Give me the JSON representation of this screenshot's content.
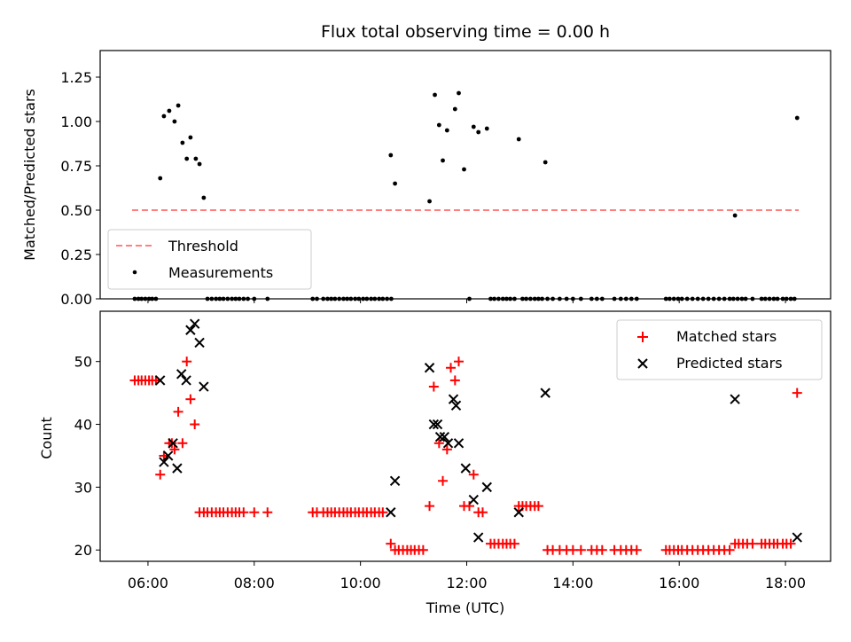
{
  "chart_data": [
    {
      "panel": "top",
      "type": "scatter",
      "title": "Flux total observing time = 0.00 h",
      "ylabel": "Matched/Predicted stars",
      "xlabel": "",
      "xlim_hours": [
        5.1,
        18.85
      ],
      "ylim": [
        0,
        1.4
      ],
      "yticks": [
        0.0,
        0.25,
        0.5,
        0.75,
        1.0,
        1.25
      ],
      "ytick_labels": [
        "0.00",
        "0.25",
        "0.50",
        "0.75",
        "1.00",
        "1.25"
      ],
      "legend_position": "lower-left",
      "colors": {
        "threshold": "#ff7f7f",
        "measurements": "#000000"
      },
      "threshold": {
        "name": "Threshold",
        "value": 0.5,
        "x_range_hours": [
          5.7,
          18.25
        ]
      },
      "measurements": {
        "name": "Measurements",
        "x_hours": [
          6.23,
          6.3,
          6.4,
          6.5,
          6.57,
          6.65,
          6.73,
          6.8,
          6.9,
          6.97,
          7.05,
          10.57,
          10.65,
          11.3,
          11.4,
          11.48,
          11.55,
          11.63,
          11.78,
          11.85,
          11.95,
          12.13,
          12.22,
          12.38,
          12.98,
          13.48,
          17.05,
          18.22
        ],
        "y": [
          0.68,
          1.03,
          1.06,
          1.0,
          1.09,
          0.88,
          0.79,
          0.91,
          0.79,
          0.76,
          0.57,
          0.81,
          0.65,
          0.55,
          1.15,
          0.98,
          0.78,
          0.95,
          1.07,
          1.16,
          0.73,
          0.97,
          0.94,
          0.96,
          0.9,
          0.77,
          0.47,
          1.02
        ],
        "zero_x_hours": [
          5.75,
          5.82,
          5.88,
          5.95,
          6.02,
          6.08,
          6.15,
          7.12,
          7.2,
          7.28,
          7.35,
          7.42,
          7.5,
          7.58,
          7.65,
          7.72,
          7.8,
          7.88,
          8.0,
          8.25,
          9.1,
          9.18,
          9.3,
          9.38,
          9.45,
          9.52,
          9.6,
          9.68,
          9.75,
          9.82,
          9.9,
          9.97,
          10.05,
          10.12,
          10.2,
          10.27,
          10.35,
          10.42,
          10.5,
          10.58,
          12.05,
          12.45,
          12.52,
          12.6,
          12.68,
          12.75,
          12.82,
          12.9,
          13.05,
          13.12,
          13.2,
          13.28,
          13.35,
          13.42,
          13.52,
          13.62,
          13.75,
          13.88,
          14.0,
          14.15,
          14.35,
          14.45,
          14.55,
          14.78,
          14.9,
          15.0,
          15.1,
          15.2,
          15.75,
          15.82,
          15.9,
          15.98,
          16.05,
          16.15,
          16.25,
          16.35,
          16.45,
          16.55,
          16.65,
          16.75,
          16.85,
          16.95,
          17.02,
          17.1,
          17.18,
          17.25,
          17.38,
          17.55,
          17.62,
          17.7,
          17.78,
          17.85,
          17.95,
          18.02,
          18.1,
          18.17
        ]
      }
    },
    {
      "panel": "bottom",
      "type": "scatter",
      "title": "",
      "ylabel": "Count",
      "xlabel": "Time (UTC)",
      "xlim_hours": [
        5.1,
        18.85
      ],
      "ylim": [
        18.2,
        58
      ],
      "yticks": [
        20,
        30,
        40,
        50
      ],
      "ytick_labels": [
        "20",
        "30",
        "40",
        "50"
      ],
      "xticks_hours": [
        6,
        8,
        10,
        12,
        14,
        16,
        18
      ],
      "xtick_labels": [
        "06:00",
        "08:00",
        "10:00",
        "12:00",
        "14:00",
        "16:00",
        "18:00"
      ],
      "legend_position": "upper-right",
      "colors": {
        "matched": "#ff0000",
        "predicted": "#000000"
      },
      "series": [
        {
          "name": "Matched stars",
          "marker": "plus",
          "x_hours": [
            5.75,
            5.82,
            5.88,
            5.95,
            6.02,
            6.08,
            6.15,
            6.23,
            6.3,
            6.4,
            6.45,
            6.5,
            6.57,
            6.65,
            6.73,
            6.8,
            6.88,
            6.97,
            7.05,
            7.12,
            7.2,
            7.28,
            7.35,
            7.42,
            7.5,
            7.58,
            7.65,
            7.72,
            7.8,
            8.0,
            8.25,
            9.1,
            9.18,
            9.3,
            9.38,
            9.45,
            9.52,
            9.6,
            9.68,
            9.75,
            9.82,
            9.9,
            9.97,
            10.05,
            10.12,
            10.2,
            10.27,
            10.35,
            10.42,
            10.57,
            10.65,
            10.72,
            10.8,
            10.88,
            10.95,
            11.02,
            11.1,
            11.18,
            11.3,
            11.38,
            11.48,
            11.55,
            11.63,
            11.7,
            11.78,
            11.85,
            11.95,
            12.05,
            12.13,
            12.22,
            12.3,
            12.45,
            12.52,
            12.6,
            12.68,
            12.75,
            12.82,
            12.9,
            12.98,
            13.05,
            13.12,
            13.2,
            13.28,
            13.35,
            13.52,
            13.62,
            13.75,
            13.88,
            14.0,
            14.15,
            14.35,
            14.45,
            14.55,
            14.78,
            14.9,
            15.0,
            15.1,
            15.2,
            15.75,
            15.82,
            15.9,
            15.98,
            16.05,
            16.15,
            16.25,
            16.35,
            16.45,
            16.55,
            16.65,
            16.75,
            16.85,
            16.95,
            17.05,
            17.12,
            17.2,
            17.28,
            17.38,
            17.55,
            17.62,
            17.7,
            17.78,
            17.85,
            17.95,
            18.02,
            18.1,
            18.22
          ],
          "y": [
            47,
            47,
            47,
            47,
            47,
            47,
            47,
            32,
            35,
            37,
            37,
            36,
            42,
            37,
            50,
            44,
            40,
            26,
            26,
            26,
            26,
            26,
            26,
            26,
            26,
            26,
            26,
            26,
            26,
            26,
            26,
            26,
            26,
            26,
            26,
            26,
            26,
            26,
            26,
            26,
            26,
            26,
            26,
            26,
            26,
            26,
            26,
            26,
            26,
            21,
            20,
            20,
            20,
            20,
            20,
            20,
            20,
            20,
            27,
            46,
            37,
            31,
            36,
            49,
            47,
            50,
            27,
            27,
            32,
            26,
            26,
            21,
            21,
            21,
            21,
            21,
            21,
            21,
            27,
            27,
            27,
            27,
            27,
            27,
            20,
            20,
            20,
            20,
            20,
            20,
            20,
            20,
            20,
            20,
            20,
            20,
            20,
            20,
            20,
            20,
            20,
            20,
            20,
            20,
            20,
            20,
            20,
            20,
            20,
            20,
            20,
            20,
            21,
            21,
            21,
            21,
            21,
            21,
            21,
            21,
            21,
            21,
            21,
            21,
            21,
            45
          ]
        },
        {
          "name": "Predicted stars",
          "marker": "x",
          "x_hours": [
            6.23,
            6.3,
            6.38,
            6.47,
            6.55,
            6.63,
            6.72,
            6.8,
            6.88,
            6.97,
            7.05,
            10.57,
            10.65,
            11.3,
            11.38,
            11.45,
            11.5,
            11.58,
            11.65,
            11.75,
            11.8,
            11.85,
            11.98,
            12.13,
            12.22,
            12.38,
            12.98,
            13.48,
            17.05,
            18.22
          ],
          "y": [
            47,
            34,
            35,
            37,
            33,
            48,
            47,
            55,
            56,
            53,
            46,
            26,
            31,
            49,
            40,
            40,
            38,
            38,
            37,
            44,
            43,
            37,
            33,
            28,
            22,
            30,
            26,
            45,
            44,
            22
          ]
        }
      ]
    }
  ]
}
